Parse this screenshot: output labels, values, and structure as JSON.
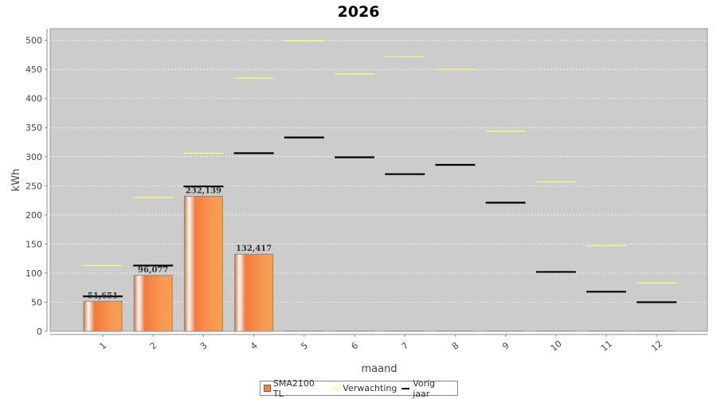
{
  "chart_data": {
    "type": "bar",
    "title": "2026",
    "xlabel": "maand",
    "ylabel": "kWh",
    "ylim": [
      0,
      520
    ],
    "yticks": [
      0,
      50,
      100,
      150,
      200,
      250,
      300,
      350,
      400,
      450,
      500
    ],
    "categories": [
      "1",
      "2",
      "3",
      "4",
      "5",
      "6",
      "7",
      "8",
      "9",
      "10",
      "11",
      "12"
    ],
    "series": [
      {
        "name": "SMA2100 TL",
        "kind": "bar",
        "color": "#f0824a",
        "values": [
          51.651,
          96.077,
          232.139,
          132.417,
          0,
          0,
          0,
          0,
          0,
          0,
          0,
          0
        ],
        "labels": [
          "51,651",
          "96,077",
          "232,139",
          "132,417",
          "",
          "",
          "",
          "",
          "",
          "",
          "",
          ""
        ]
      },
      {
        "name": "Verwachting",
        "kind": "marker",
        "color": "#ffff66",
        "values": [
          113,
          230,
          306,
          435,
          499,
          442,
          472,
          450,
          344,
          257,
          147,
          83
        ]
      },
      {
        "name": "Vorig jaar",
        "kind": "marker",
        "color": "#000000",
        "values": [
          60,
          113,
          249,
          306,
          333,
          299,
          270,
          286,
          221,
          102,
          68,
          50
        ]
      }
    ],
    "grid": true,
    "legend_position": "bottom"
  }
}
